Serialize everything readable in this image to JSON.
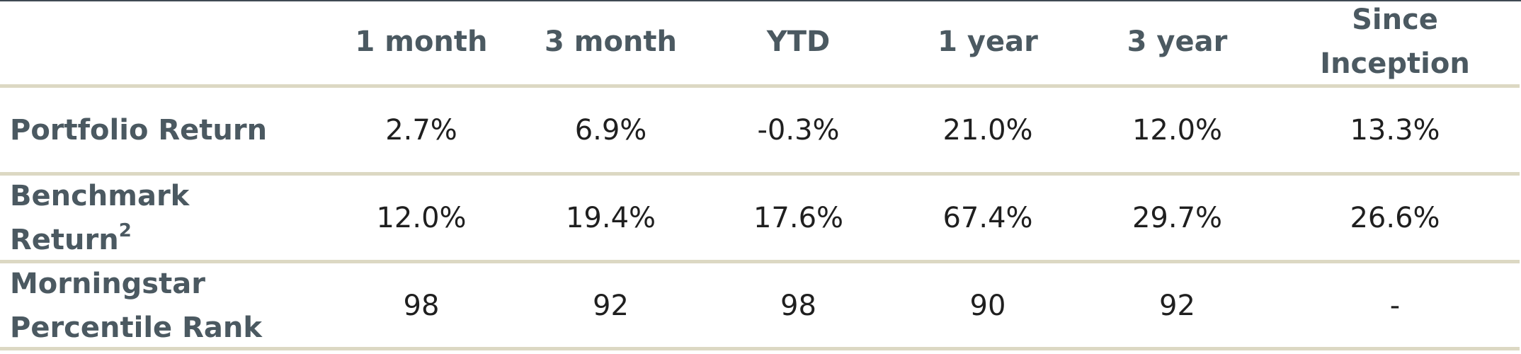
{
  "columns": [
    "1 month",
    "3 month",
    "YTD",
    "1 year",
    "3 year",
    "Since Inception"
  ],
  "rows": [
    {
      "label": "Portfolio Return",
      "label_sup": "",
      "values": [
        "2.7%",
        "6.9%",
        "-0.3%",
        "21.0%",
        "12.0%",
        "13.3%"
      ]
    },
    {
      "label": "Benchmark Return",
      "label_sup": "2",
      "values": [
        "12.0%",
        "19.4%",
        "17.6%",
        "67.4%",
        "29.7%",
        "26.6%"
      ]
    },
    {
      "label": "Morningstar Percentile Rank",
      "label_sup": "",
      "values": [
        "98",
        "92",
        "98",
        "90",
        "92",
        "-"
      ]
    }
  ],
  "colors": {
    "header_text": "#4b5961",
    "body_text": "#1f1f1f",
    "rule": "#dcd8c3",
    "top_rule": "#3f4a53"
  }
}
